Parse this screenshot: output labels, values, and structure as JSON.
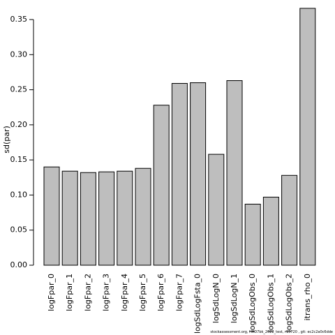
{
  "chart_data": {
    "type": "bar",
    "y_label": "sd(par)",
    "footer": "stockassessment.org, HAD7bk_2022_test, r15720 , git: ec2c2a0c6dde",
    "categories": [
      "logFpar_0",
      "logFpar_1",
      "logFpar_2",
      "logFpar_3",
      "logFpar_4",
      "logFpar_5",
      "logFpar_6",
      "logFpar_7",
      "logSdLogFsta_0",
      "logSdLogN_0",
      "logSdLogN_1",
      "logSdLogObs_0",
      "logSdLogObs_1",
      "logSdLogObs_2",
      "itrans_rho_0"
    ],
    "values": [
      0.14,
      0.134,
      0.132,
      0.133,
      0.134,
      0.138,
      0.228,
      0.259,
      0.26,
      0.158,
      0.263,
      0.087,
      0.097,
      0.128,
      0.366
    ],
    "color": "#bebebe",
    "ylim": [
      0,
      0.35
    ],
    "yticks": [
      {
        "value": 0,
        "label": "0.00"
      },
      {
        "value": 0.05,
        "label": "0.05"
      },
      {
        "value": 0.1,
        "label": "0.10"
      },
      {
        "value": 0.15,
        "label": "0.15"
      },
      {
        "value": 0.2,
        "label": "0.20"
      },
      {
        "value": 0.25,
        "label": "0.25"
      },
      {
        "value": 0.3,
        "label": "0.30"
      },
      {
        "value": 0.35,
        "label": "0.35"
      }
    ]
  }
}
